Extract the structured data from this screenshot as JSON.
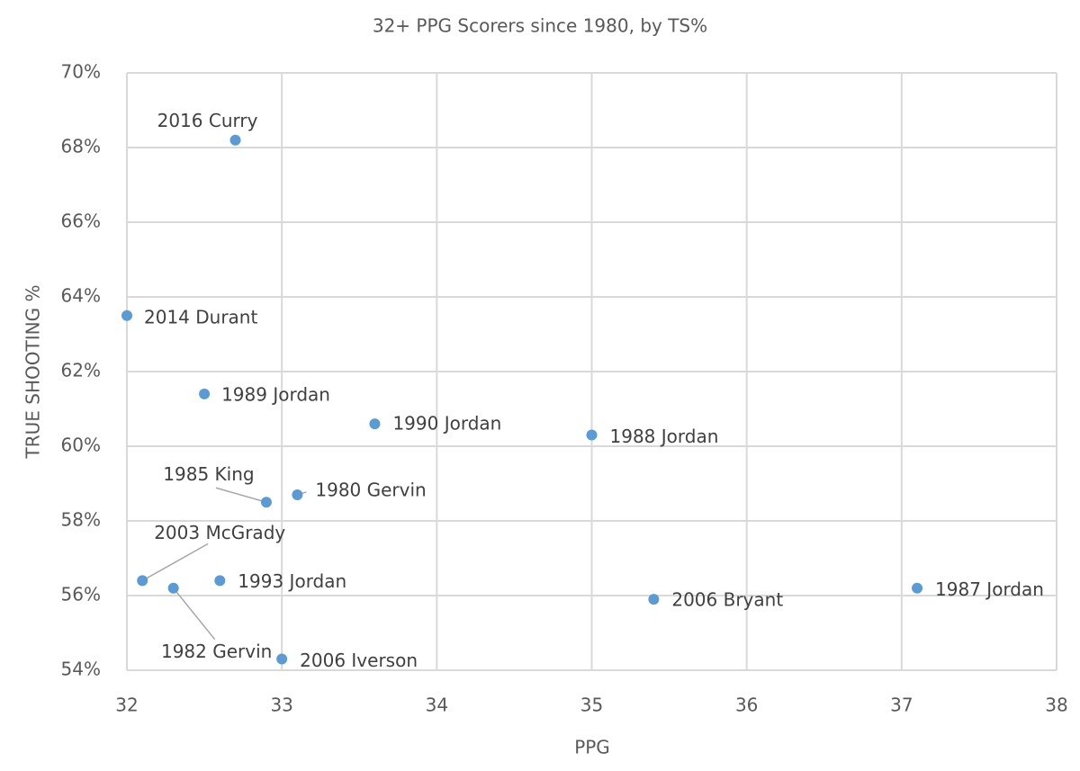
{
  "chart_data": {
    "type": "scatter",
    "title": "32+ PPG Scorers since 1980, by TS%",
    "x_label": "PPG",
    "y_label": "TRUE SHOOTING %",
    "x": [
      32.7,
      32.0,
      32.5,
      33.6,
      35.0,
      32.9,
      33.1,
      32.1,
      32.3,
      32.6,
      35.4,
      37.1,
      33.0
    ],
    "values": [
      68.2,
      63.5,
      61.4,
      60.6,
      60.3,
      58.5,
      58.7,
      56.4,
      56.2,
      56.4,
      55.9,
      56.2,
      54.3
    ],
    "point_labels": [
      "2016 Curry",
      "2014 Durant",
      "1989 Jordan",
      "1990 Jordan",
      "1988 Jordan",
      "1985 King",
      "1980 Gervin",
      "2003 McGrady",
      "1982 Gervin",
      "1993 Jordan",
      "2006 Bryant",
      "1987 Jordan",
      "2006 Iverson"
    ],
    "color": "#5b9bd5",
    "xlim": [
      32,
      38
    ],
    "xticks": [
      32,
      33,
      34,
      35,
      36,
      37,
      38
    ],
    "ylim": [
      54,
      70
    ],
    "yticks": [
      {
        "value": 54,
        "label": "54%"
      },
      {
        "value": 56,
        "label": "56%"
      },
      {
        "value": 58,
        "label": "58%"
      },
      {
        "value": 60,
        "label": "60%"
      },
      {
        "value": 62,
        "label": "62%"
      },
      {
        "value": 64,
        "label": "64%"
      },
      {
        "value": 66,
        "label": "66%"
      },
      {
        "value": 68,
        "label": "68%"
      },
      {
        "value": 70,
        "label": "70%"
      }
    ],
    "grid": true
  }
}
